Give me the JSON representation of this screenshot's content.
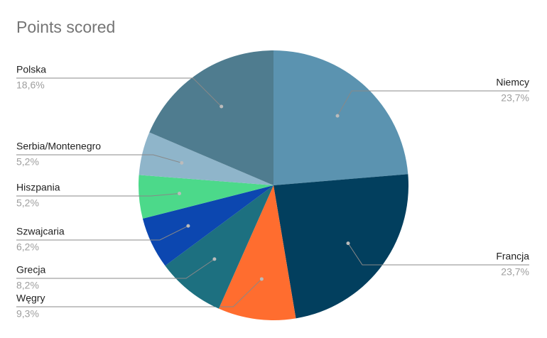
{
  "chart_data": {
    "type": "pie",
    "title": "Points scored",
    "categories": [
      "Niemcy",
      "Francja",
      "Węgry",
      "Grecja",
      "Szwajcaria",
      "Hiszpania",
      "Serbia/Montenegro",
      "Polska"
    ],
    "values": [
      23.7,
      23.7,
      9.3,
      8.2,
      6.2,
      5.2,
      5.2,
      18.6
    ],
    "value_labels": [
      "23,7%",
      "23,7%",
      "9,3%",
      "8,2%",
      "6,2%",
      "5,2%",
      "5,2%",
      "18,6%"
    ],
    "colors": [
      "#5b93b0",
      "#023f5e",
      "#ff6d2f",
      "#1d7080",
      "#0c47b0",
      "#4cd98a",
      "#8fb5ca",
      "#4f7c8f"
    ]
  }
}
